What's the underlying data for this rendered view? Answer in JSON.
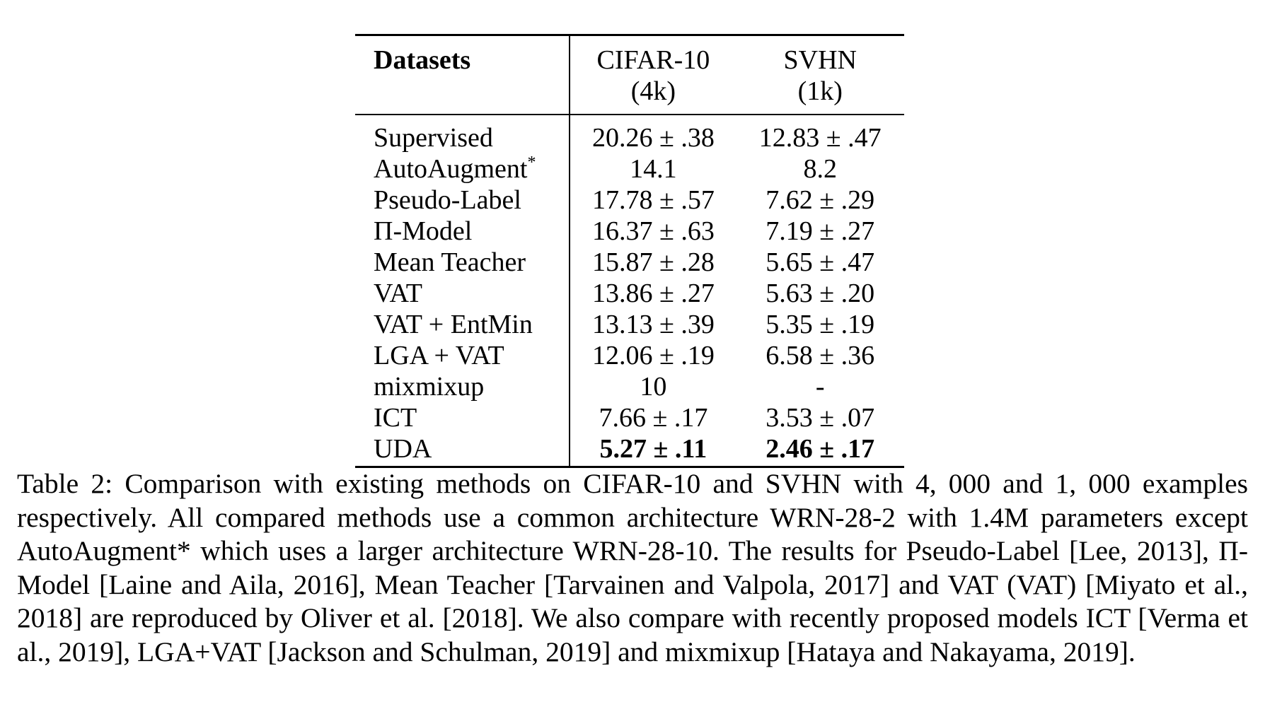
{
  "table": {
    "header": {
      "method_label": "Datasets",
      "columns": [
        {
          "name": "CIFAR-10",
          "sub": "(4k)"
        },
        {
          "name": "SVHN",
          "sub": "(1k)"
        }
      ]
    },
    "rows": [
      {
        "method": "Supervised",
        "sup": "",
        "cifar": "20.26 ± .38",
        "svhn": "12.83 ± .47"
      },
      {
        "method": "AutoAugment",
        "sup": "*",
        "cifar": "14.1",
        "svhn": "8.2"
      },
      {
        "method": "Pseudo-Label",
        "sup": "",
        "cifar": "17.78 ± .57",
        "svhn": "7.62 ± .29"
      },
      {
        "method": "Π-Model",
        "sup": "",
        "cifar": "16.37 ± .63",
        "svhn": "7.19 ± .27"
      },
      {
        "method": "Mean Teacher",
        "sup": "",
        "cifar": "15.87 ± .28",
        "svhn": "5.65 ± .47"
      },
      {
        "method": "VAT",
        "sup": "",
        "cifar": "13.86 ± .27",
        "svhn": "5.63 ± .20"
      },
      {
        "method": "VAT + EntMin",
        "sup": "",
        "cifar": "13.13 ± .39",
        "svhn": "5.35 ± .19"
      },
      {
        "method": "LGA + VAT",
        "sup": "",
        "cifar": "12.06 ± .19",
        "svhn": "6.58 ± .36"
      },
      {
        "method": "mixmixup",
        "sup": "",
        "cifar": "10",
        "svhn": "-"
      },
      {
        "method": "ICT",
        "sup": "",
        "cifar": "7.66 ± .17",
        "svhn": "3.53 ± .07"
      },
      {
        "method": "UDA",
        "sup": "",
        "cifar": "5.27 ± .11",
        "svhn": "2.46 ± .17",
        "bold": true
      }
    ]
  },
  "caption": {
    "text": "Table 2: Comparison with existing methods on CIFAR-10 and SVHN with 4, 000 and 1, 000 examples respectively. All compared methods use a common architecture WRN-28-2 with 1.4M parameters except AutoAugment* which uses a larger architecture WRN-28-10. The results for Pseudo-Label [Lee, 2013], Π-Model [Laine and Aila, 2016], Mean Teacher [Tarvainen and Valpola, 2017] and VAT (VAT) [Miyato et al., 2018] are reproduced by Oliver et al. [2018]. We also compare with recently proposed models ICT [Verma et al., 2019], LGA+VAT [Jackson and Schulman, 2019] and mixmixup [Hataya and Nakayama, 2019]."
  }
}
